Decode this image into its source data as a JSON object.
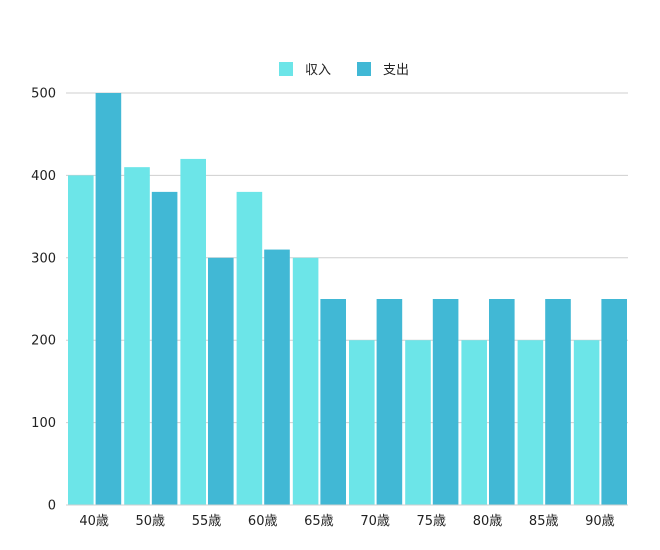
{
  "chart_data": {
    "type": "bar",
    "categories": [
      "40歳",
      "50歳",
      "55歳",
      "60歳",
      "65歳",
      "70歳",
      "75歳",
      "80歳",
      "85歳",
      "90歳"
    ],
    "series": [
      {
        "name": "収入",
        "color": "#6ce5e8",
        "values": [
          400,
          410,
          420,
          380,
          300,
          200,
          200,
          200,
          200,
          200
        ]
      },
      {
        "name": "支出",
        "color": "#41b8d5",
        "values": [
          500,
          380,
          300,
          310,
          250,
          250,
          250,
          250,
          250,
          250
        ]
      }
    ],
    "ylim": [
      0,
      500
    ],
    "yticks": [
      0,
      100,
      200,
      300,
      400,
      500
    ],
    "ytick_labels": [
      "0",
      "100",
      "200",
      "300",
      "400",
      "500"
    ],
    "grid": true,
    "legend_position": "top-center",
    "title": "",
    "xlabel": "",
    "ylabel": ""
  }
}
